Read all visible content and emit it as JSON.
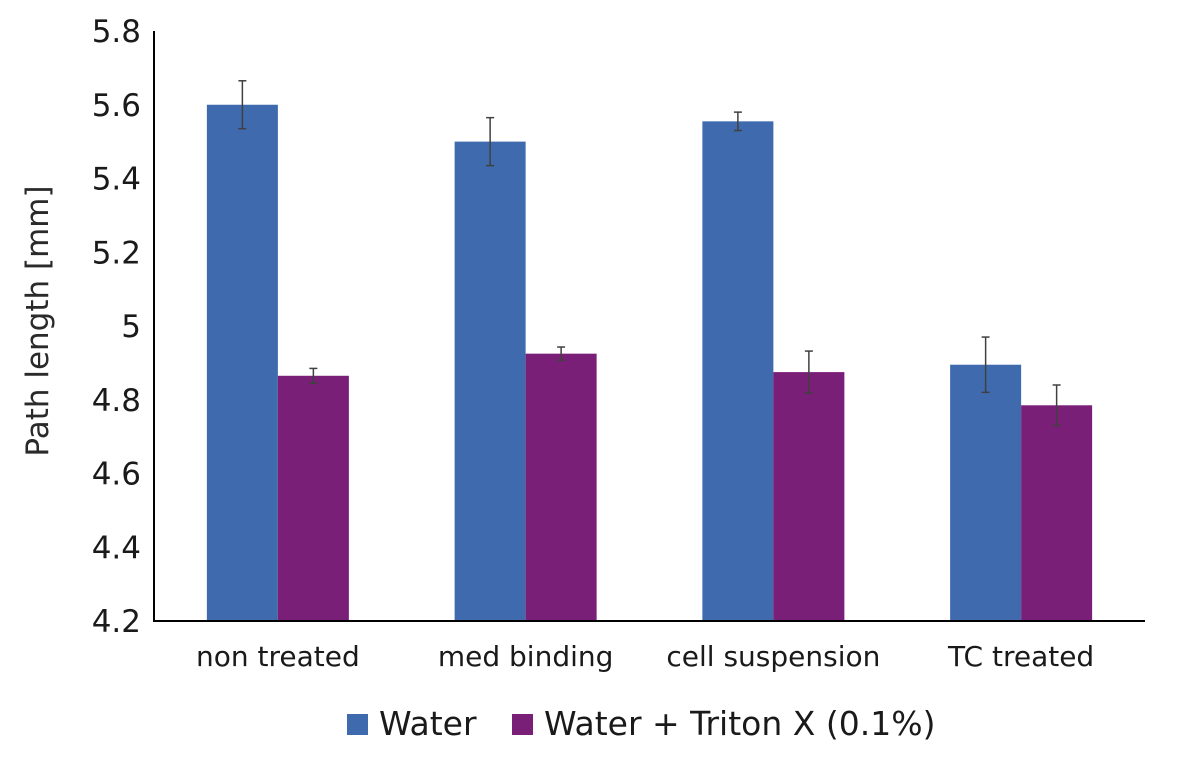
{
  "chart_data": {
    "type": "bar",
    "categories": [
      "non treated",
      "med binding",
      "cell suspension",
      "TC treated"
    ],
    "series": [
      {
        "name": "Water",
        "color": "#3f6aad",
        "values": [
          5.6,
          5.5,
          5.555,
          4.895
        ],
        "errors": [
          0.065,
          0.065,
          0.025,
          0.075
        ]
      },
      {
        "name": "Water + Triton X (0.1%)",
        "color": "#7a1f77",
        "values": [
          4.865,
          4.925,
          4.875,
          4.785
        ],
        "errors": [
          0.02,
          0.018,
          0.057,
          0.055
        ]
      }
    ],
    "ylabel": "Path length [mm]",
    "ylim": [
      4.2,
      5.8
    ],
    "yticks": [
      "4.2",
      "4.4",
      "4.6",
      "4.8",
      "5",
      "5.2",
      "5.4",
      "5.6",
      "5.8"
    ],
    "grid": false,
    "legend_position": "bottom"
  }
}
